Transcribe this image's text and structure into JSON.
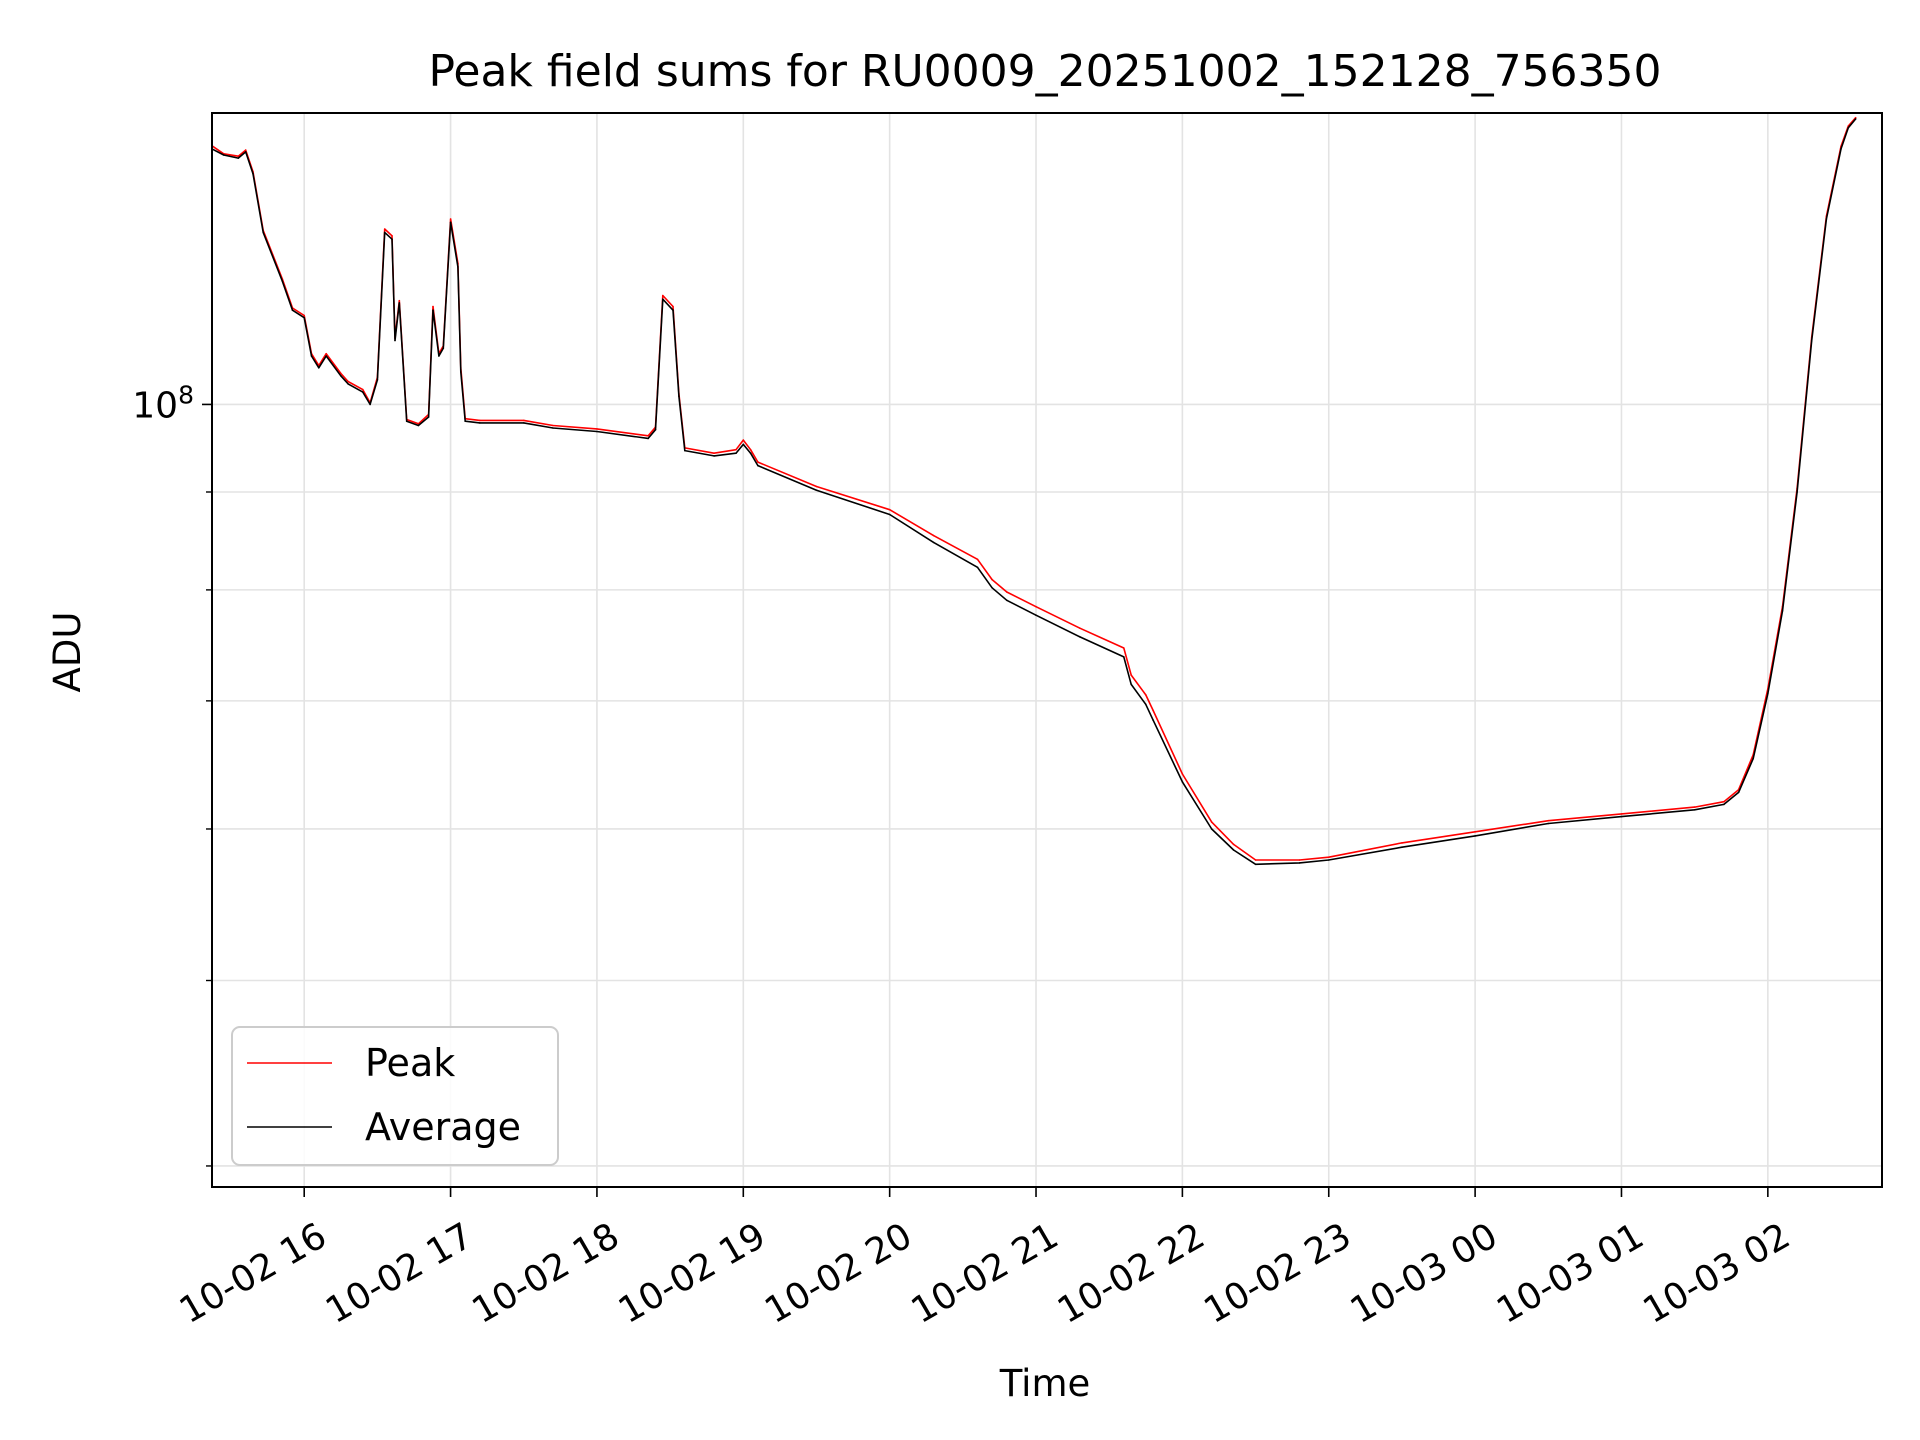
{
  "chart_data": {
    "type": "line",
    "title": "Peak field sums for RU0009_20251002_152128_756350",
    "xlabel": "Time",
    "ylabel": "ADU",
    "yscale": "log",
    "ylim": [
      39000000,
      142000000
    ],
    "x_unit": "hours since 10-02 15:00",
    "xlim": [
      15.37,
      26.78
    ],
    "grid": true,
    "legend_position": "lower-left",
    "x_ticks": [
      {
        "x": 16,
        "label": "10-02 16"
      },
      {
        "x": 17,
        "label": "10-02 17"
      },
      {
        "x": 18,
        "label": "10-02 18"
      },
      {
        "x": 19,
        "label": "10-02 19"
      },
      {
        "x": 20,
        "label": "10-02 20"
      },
      {
        "x": 21,
        "label": "10-02 21"
      },
      {
        "x": 22,
        "label": "10-02 22"
      },
      {
        "x": 23,
        "label": "10-02 23"
      },
      {
        "x": 24,
        "label": "10-03 00"
      },
      {
        "x": 25,
        "label": "10-03 01"
      },
      {
        "x": 26,
        "label": "10-03 02"
      }
    ],
    "y_ticks_major": [
      {
        "value": 100000000,
        "label_base": "10",
        "label_exp": "8"
      }
    ],
    "y_ticks_minor": [
      40000000,
      50000000,
      60000000,
      70000000,
      80000000,
      90000000,
      200000000
    ],
    "series": [
      {
        "name": "Average",
        "color": "#000000",
        "points": [
          [
            15.37,
            136000000
          ],
          [
            15.45,
            135000000
          ],
          [
            15.55,
            134500000
          ],
          [
            15.6,
            135500000
          ],
          [
            15.65,
            132000000
          ],
          [
            15.72,
            123000000
          ],
          [
            15.85,
            116000000
          ],
          [
            15.92,
            112000000
          ],
          [
            16.0,
            111000000
          ],
          [
            16.05,
            106000000
          ],
          [
            16.1,
            104500000
          ],
          [
            16.15,
            106000000
          ],
          [
            16.25,
            103500000
          ],
          [
            16.3,
            102500000
          ],
          [
            16.4,
            101500000
          ],
          [
            16.45,
            100000000
          ],
          [
            16.5,
            103000000
          ],
          [
            16.55,
            123000000
          ],
          [
            16.6,
            122000000
          ],
          [
            16.62,
            108000000
          ],
          [
            16.65,
            113000000
          ],
          [
            16.7,
            98000000
          ],
          [
            16.78,
            97500000
          ],
          [
            16.85,
            98500000
          ],
          [
            16.88,
            112000000
          ],
          [
            16.92,
            106000000
          ],
          [
            16.95,
            107000000
          ],
          [
            17.0,
            124500000
          ],
          [
            17.05,
            118000000
          ],
          [
            17.07,
            104000000
          ],
          [
            17.1,
            98000000
          ],
          [
            17.2,
            97800000
          ],
          [
            17.5,
            97800000
          ],
          [
            17.7,
            97200000
          ],
          [
            18.0,
            96800000
          ],
          [
            18.35,
            96000000
          ],
          [
            18.4,
            97000000
          ],
          [
            18.45,
            113500000
          ],
          [
            18.52,
            112000000
          ],
          [
            18.56,
            101000000
          ],
          [
            18.6,
            94600000
          ],
          [
            18.8,
            94000000
          ],
          [
            18.95,
            94300000
          ],
          [
            19.0,
            95300000
          ],
          [
            19.05,
            94300000
          ],
          [
            19.1,
            92900000
          ],
          [
            19.5,
            90200000
          ],
          [
            20.0,
            87600000
          ],
          [
            20.3,
            84700000
          ],
          [
            20.6,
            82200000
          ],
          [
            20.7,
            80200000
          ],
          [
            20.8,
            79000000
          ],
          [
            21.0,
            77600000
          ],
          [
            21.3,
            75600000
          ],
          [
            21.6,
            73800000
          ],
          [
            21.65,
            71400000
          ],
          [
            21.75,
            69700000
          ],
          [
            21.8,
            68400000
          ],
          [
            22.0,
            63500000
          ],
          [
            22.2,
            60000000
          ],
          [
            22.35,
            58500000
          ],
          [
            22.5,
            57500000
          ],
          [
            22.8,
            57600000
          ],
          [
            23.0,
            57800000
          ],
          [
            23.5,
            58700000
          ],
          [
            24.0,
            59500000
          ],
          [
            24.5,
            60400000
          ],
          [
            25.0,
            60900000
          ],
          [
            25.5,
            61400000
          ],
          [
            25.7,
            61800000
          ],
          [
            25.8,
            62700000
          ],
          [
            25.9,
            65300000
          ],
          [
            26.0,
            70600000
          ],
          [
            26.1,
            78000000
          ],
          [
            26.2,
            90000000
          ],
          [
            26.3,
            108000000
          ],
          [
            26.4,
            125000000
          ],
          [
            26.5,
            136000000
          ],
          [
            26.55,
            139500000
          ],
          [
            26.6,
            141000000
          ]
        ]
      },
      {
        "name": "Peak",
        "color": "#ff0000",
        "points": [
          [
            15.37,
            136500000
          ],
          [
            15.45,
            135200000
          ],
          [
            15.55,
            134800000
          ],
          [
            15.6,
            135800000
          ],
          [
            15.65,
            132300000
          ],
          [
            15.72,
            123300000
          ],
          [
            15.85,
            116300000
          ],
          [
            15.92,
            112300000
          ],
          [
            16.0,
            111300000
          ],
          [
            16.05,
            106300000
          ],
          [
            16.1,
            104800000
          ],
          [
            16.15,
            106300000
          ],
          [
            16.25,
            103800000
          ],
          [
            16.3,
            102800000
          ],
          [
            16.4,
            101800000
          ],
          [
            16.45,
            100200000
          ],
          [
            16.5,
            103300000
          ],
          [
            16.55,
            123500000
          ],
          [
            16.6,
            122500000
          ],
          [
            16.62,
            108300000
          ],
          [
            16.65,
            113300000
          ],
          [
            16.7,
            98200000
          ],
          [
            16.78,
            97700000
          ],
          [
            16.85,
            98800000
          ],
          [
            16.88,
            112500000
          ],
          [
            16.92,
            106300000
          ],
          [
            16.95,
            107300000
          ],
          [
            17.0,
            125000000
          ],
          [
            17.05,
            118500000
          ],
          [
            17.07,
            104500000
          ],
          [
            17.1,
            98300000
          ],
          [
            17.2,
            98100000
          ],
          [
            17.5,
            98100000
          ],
          [
            17.7,
            97500000
          ],
          [
            18.0,
            97100000
          ],
          [
            18.35,
            96300000
          ],
          [
            18.4,
            97300000
          ],
          [
            18.45,
            114000000
          ],
          [
            18.52,
            112500000
          ],
          [
            18.56,
            101300000
          ],
          [
            18.6,
            94900000
          ],
          [
            18.8,
            94300000
          ],
          [
            18.95,
            94700000
          ],
          [
            19.0,
            95800000
          ],
          [
            19.05,
            94700000
          ],
          [
            19.1,
            93300000
          ],
          [
            19.5,
            90600000
          ],
          [
            20.0,
            88100000
          ],
          [
            20.3,
            85400000
          ],
          [
            20.6,
            83000000
          ],
          [
            20.7,
            81000000
          ],
          [
            20.8,
            79800000
          ],
          [
            21.0,
            78400000
          ],
          [
            21.3,
            76400000
          ],
          [
            21.6,
            74600000
          ],
          [
            21.65,
            72200000
          ],
          [
            21.75,
            70500000
          ],
          [
            21.8,
            69200000
          ],
          [
            22.0,
            64100000
          ],
          [
            22.2,
            60500000
          ],
          [
            22.35,
            58900000
          ],
          [
            22.5,
            57800000
          ],
          [
            22.8,
            57800000
          ],
          [
            23.0,
            58000000
          ],
          [
            23.5,
            59000000
          ],
          [
            24.0,
            59800000
          ],
          [
            24.5,
            60600000
          ],
          [
            25.0,
            61100000
          ],
          [
            25.5,
            61600000
          ],
          [
            25.7,
            62000000
          ],
          [
            25.8,
            62900000
          ],
          [
            25.9,
            65600000
          ],
          [
            26.0,
            71000000
          ],
          [
            26.1,
            78400000
          ],
          [
            26.2,
            90400000
          ],
          [
            26.3,
            108400000
          ],
          [
            26.4,
            125400000
          ],
          [
            26.5,
            136400000
          ],
          [
            26.55,
            139800000
          ],
          [
            26.6,
            141200000
          ]
        ]
      }
    ]
  }
}
